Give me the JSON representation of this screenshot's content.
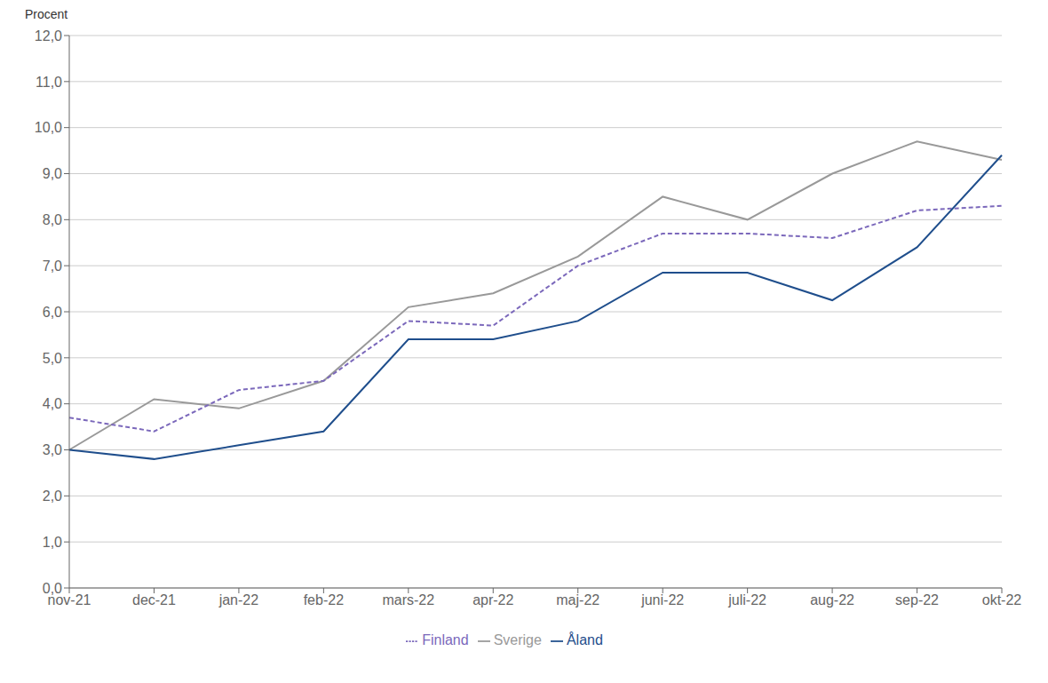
{
  "chart_data": {
    "type": "line",
    "ylabel": "Procent",
    "categories": [
      "nov-21",
      "dec-21",
      "jan-22",
      "feb-22",
      "mars-22",
      "apr-22",
      "maj-22",
      "juni-22",
      "juli-22",
      "aug-22",
      "sep-22",
      "okt-22"
    ],
    "series": [
      {
        "name": "Sverige",
        "color": "#999999",
        "line_style": "solid",
        "values": [
          3.0,
          4.1,
          3.9,
          4.5,
          6.1,
          6.4,
          7.2,
          8.5,
          8.0,
          9.0,
          9.7,
          9.3
        ]
      },
      {
        "name": "Finland",
        "color": "#7B68BB",
        "line_style": "dashed",
        "values": [
          3.7,
          3.4,
          4.3,
          4.5,
          5.8,
          5.7,
          7.0,
          7.7,
          7.7,
          7.6,
          8.2,
          8.3
        ]
      },
      {
        "name": "Åland",
        "color": "#1F4E8C",
        "line_style": "solid",
        "values": [
          3.0,
          2.8,
          3.1,
          3.4,
          5.4,
          5.4,
          5.8,
          6.85,
          6.85,
          6.25,
          7.4,
          9.4
        ]
      }
    ],
    "ylim": [
      0,
      12
    ],
    "yticks": [
      {
        "value": 0,
        "label": "0,0"
      },
      {
        "value": 1,
        "label": "1,0"
      },
      {
        "value": 2,
        "label": "2,0"
      },
      {
        "value": 3,
        "label": "3,0"
      },
      {
        "value": 4,
        "label": "4,0"
      },
      {
        "value": 5,
        "label": "5,0"
      },
      {
        "value": 6,
        "label": "6,0"
      },
      {
        "value": 7,
        "label": "7,0"
      },
      {
        "value": 8,
        "label": "8,0"
      },
      {
        "value": 9,
        "label": "9,0"
      },
      {
        "value": 10,
        "label": "10,0"
      },
      {
        "value": 11,
        "label": "11,0"
      },
      {
        "value": 12,
        "label": "12,0"
      }
    ],
    "grid": true,
    "legend": "bottom"
  }
}
